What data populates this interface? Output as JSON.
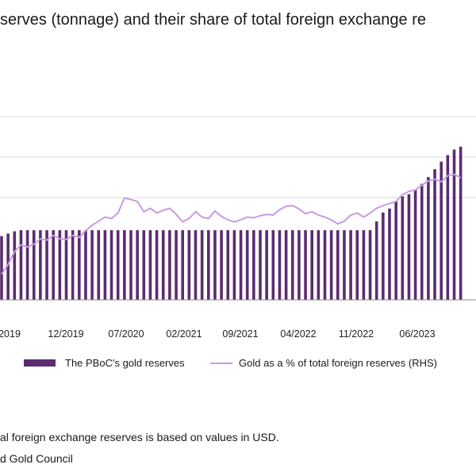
{
  "title": "serves (tonnage) and their share of total foreign exchange re",
  "legend": {
    "bars_label": "The PBoC's gold reserves",
    "line_label": "Gold as a % of total foreign reserves (RHS)"
  },
  "footnotes": [
    "al foreign exchange reserves is based on values in USD.",
    "d Gold Council"
  ],
  "colors": {
    "bars": "#5b2c6f",
    "line": "#c79be3",
    "grid": "#d9d9d9",
    "axis": "#8c8c8c"
  },
  "chart_data": {
    "type": "bar",
    "x_tick_labels": [
      "2019",
      "12/2019",
      "07/2020",
      "02/2021",
      "09/2021",
      "04/2022",
      "11/2022",
      "06/2023"
    ],
    "series": [
      {
        "name": "The PBoC's gold reserves",
        "type": "bar",
        "values": [
          1927,
          1936,
          1944,
          1948,
          1948,
          1948,
          1948,
          1948,
          1948,
          1948,
          1948,
          1948,
          1948,
          1948,
          1948,
          1948,
          1948,
          1948,
          1948,
          1948,
          1948,
          1948,
          1948,
          1948,
          1948,
          1948,
          1948,
          1948,
          1948,
          1948,
          1948,
          1948,
          1948,
          1948,
          1948,
          1948,
          1948,
          1948,
          1948,
          1948,
          1948,
          1948,
          1948,
          1948,
          1948,
          1948,
          1948,
          1948,
          1948,
          1948,
          1948,
          1948,
          1948,
          1948,
          1948,
          1948,
          1948,
          1948,
          1979,
          2011,
          2025,
          2050,
          2068,
          2076,
          2092,
          2113,
          2137,
          2165,
          2192,
          2215,
          2235,
          2245
        ]
      },
      {
        "name": "Gold as a % of total foreign reserves (RHS)",
        "type": "line",
        "values": [
          2.98,
          3.12,
          3.31,
          3.41,
          3.38,
          3.42,
          3.5,
          3.48,
          3.55,
          3.5,
          3.49,
          3.55,
          3.52,
          3.62,
          3.7,
          3.76,
          3.82,
          3.8,
          3.88,
          4.1,
          4.08,
          4.05,
          3.9,
          3.95,
          3.88,
          3.92,
          3.95,
          3.86,
          3.75,
          3.8,
          3.9,
          3.82,
          3.8,
          3.91,
          3.83,
          3.78,
          3.75,
          3.78,
          3.82,
          3.81,
          3.84,
          3.86,
          3.85,
          3.93,
          3.98,
          3.99,
          3.94,
          3.87,
          3.9,
          3.85,
          3.82,
          3.78,
          3.72,
          3.76,
          3.85,
          3.88,
          3.82,
          3.88,
          3.95,
          3.99,
          4.02,
          4.05,
          4.15,
          4.2,
          4.22,
          4.29,
          4.35,
          4.38,
          4.34,
          4.43,
          4.45,
          4.4
        ]
      }
    ],
    "grid": true,
    "legend_position": "bottom"
  }
}
